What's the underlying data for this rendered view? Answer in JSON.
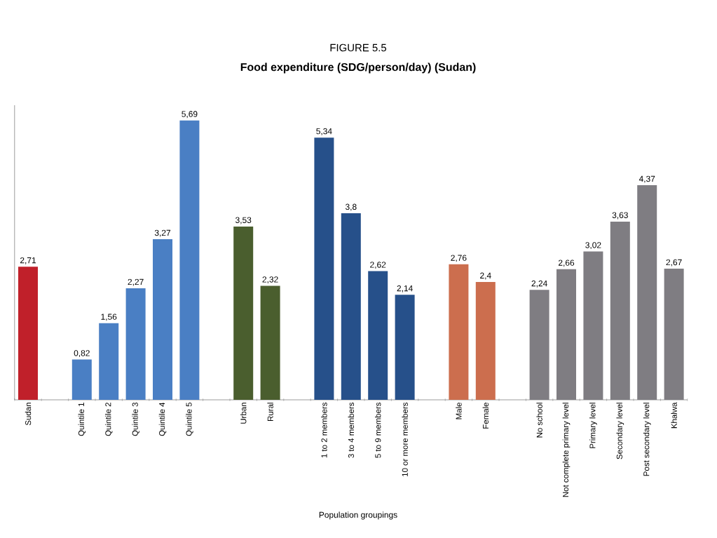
{
  "chart_data": {
    "type": "bar",
    "title": "FIGURE 5.5",
    "subtitle": "Food expenditure (SDG/person/day) (Sudan)",
    "xlabel": "Population groupings",
    "categories": [
      "Sudan",
      null,
      "Quintile 1",
      "Quintile 2",
      "Quintile 3",
      "Quintile 4",
      "Quintile 5",
      null,
      "Urban",
      "Rural",
      null,
      "1 to 2 members",
      "3 to 4 members",
      "5 to 9 members",
      "10 or more members",
      null,
      "Male",
      "Female",
      null,
      "No school",
      "Not complete primary level",
      "Primary level",
      "Secondary level",
      "Post secondary level",
      "Khalwa"
    ],
    "values": [
      2.71,
      null,
      0.82,
      1.56,
      2.27,
      3.27,
      5.69,
      null,
      3.53,
      2.32,
      null,
      5.34,
      3.8,
      2.62,
      2.14,
      null,
      2.76,
      2.4,
      null,
      2.24,
      2.66,
      3.02,
      3.63,
      4.37,
      2.67
    ],
    "value_labels": [
      "2,71",
      null,
      "0,82",
      "1,56",
      "2,27",
      "3,27",
      "5,69",
      null,
      "3,53",
      "2,32",
      null,
      "5,34",
      "3,8",
      "2,62",
      "2,14",
      null,
      "2,76",
      "2,4",
      null,
      "2,24",
      "2,66",
      "3,02",
      "3,63",
      "4,37",
      "2,67"
    ],
    "colors": [
      "#c0202a",
      null,
      "#4a7fc4",
      "#4a7fc4",
      "#4a7fc4",
      "#4a7fc4",
      "#4a7fc4",
      null,
      "#4a5e2e",
      "#4a5e2e",
      null,
      "#26508a",
      "#26508a",
      "#26508a",
      "#26508a",
      null,
      "#cc6e4e",
      "#cc6e4e",
      null,
      "#7f7d82",
      "#7f7d82",
      "#7f7d82",
      "#7f7d82",
      "#7f7d82",
      "#7f7d82"
    ],
    "ylim": [
      0,
      6
    ]
  }
}
